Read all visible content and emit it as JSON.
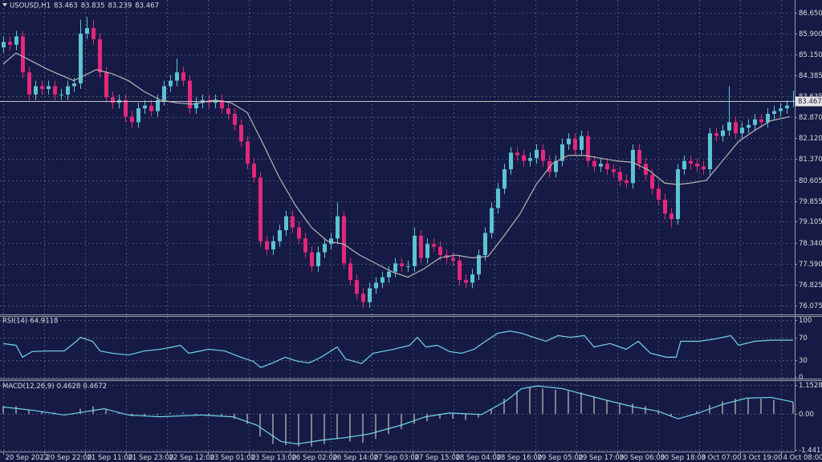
{
  "chart_data": [
    {
      "type": "candlestick",
      "title": "USOUSD,H1",
      "up_color": "#5cc3d2",
      "down_color": "#e2287a",
      "grid": true,
      "xlim": [
        -0.5,
        123.25
      ],
      "ylim": [
        75.756,
        87.114
      ],
      "xticks": [
        {
          "value": 0,
          "label": "20 Sep 2022"
        },
        {
          "value": 6.4,
          "label": "20 Sep 22:00"
        },
        {
          "value": 12.8,
          "label": "21 Sep 11:00"
        },
        {
          "value": 19.1,
          "label": "21 Sep 23:00"
        },
        {
          "value": 25.5,
          "label": "22 Sep 12:00"
        },
        {
          "value": 31.9,
          "label": "23 Sep 01:00"
        },
        {
          "value": 38.3,
          "label": "23 Sep 13:00"
        },
        {
          "value": 44.6,
          "label": "26 Sep 02:00"
        },
        {
          "value": 51,
          "label": "26 Sep 14:00"
        },
        {
          "value": 57.4,
          "label": "27 Sep 03:00"
        },
        {
          "value": 63.8,
          "label": "27 Sep 15:00"
        },
        {
          "value": 70.1,
          "label": "28 Sep 04:00"
        },
        {
          "value": 76.5,
          "label": "28 Sep 16:00"
        },
        {
          "value": 82.9,
          "label": "29 Sep 05:00"
        },
        {
          "value": 89.3,
          "label": "29 Sep 17:00"
        },
        {
          "value": 95.6,
          "label": "30 Sep 06:00"
        },
        {
          "value": 102,
          "label": "30 Sep 18:00"
        },
        {
          "value": 108.4,
          "label": "3 Oct 07:00"
        },
        {
          "value": 114.8,
          "label": "3 Oct 19:00"
        },
        {
          "value": 121.1,
          "label": "4 Oct 08:00"
        }
      ],
      "yticks": [
        {
          "value": 86.65,
          "label": "86.650"
        },
        {
          "value": 85.9,
          "label": "85.900"
        },
        {
          "value": 85.15,
          "label": "85.150"
        },
        84.385,
        83.635,
        {
          "value": 82.87,
          "label": "82.870"
        },
        {
          "value": 82.12,
          "label": "82.120"
        },
        {
          "value": 81.37,
          "label": "81.370"
        },
        80.605,
        79.855,
        79.105,
        {
          "value": 78.34,
          "label": "78.340"
        },
        {
          "value": 77.59,
          "label": "77.590"
        },
        76.825,
        76.075
      ],
      "open": [
        85.4,
        85.6,
        85.5,
        85.8,
        84.5,
        83.7,
        84.0,
        83.9,
        84.0,
        83.7,
        83.7,
        84.0,
        84.1,
        85.9,
        86.1,
        85.7,
        84.5,
        83.6,
        83.4,
        83.5,
        82.9,
        82.7,
        83.2,
        83.3,
        83.1,
        83.5,
        84.0,
        84.2,
        84.5,
        84.2,
        83.2,
        83.4,
        83.5,
        83.4,
        83.5,
        83.2,
        83.0,
        82.6,
        82.0,
        81.2,
        80.7,
        78.4,
        78.1,
        78.4,
        78.8,
        79.3,
        78.9,
        78.5,
        78.0,
        77.5,
        78.0,
        78.3,
        78.5,
        79.3,
        77.6,
        77.0,
        76.5,
        76.2,
        76.7,
        76.9,
        77.1,
        77.3,
        77.6,
        77.5,
        77.5,
        78.6,
        77.8,
        78.3,
        78.2,
        77.9,
        77.8,
        77.7,
        77.0,
        76.9,
        77.2,
        77.9,
        78.7,
        79.6,
        80.3,
        81.0,
        81.6,
        81.5,
        81.3,
        81.4,
        81.7,
        81.3,
        80.9,
        81.3,
        81.9,
        82.1,
        81.7,
        82.2,
        81.3,
        81.1,
        81.2,
        81.0,
        80.9,
        80.6,
        80.5,
        81.7,
        81.2,
        80.8,
        80.3,
        79.9,
        79.4,
        79.2,
        81.0,
        81.3,
        81.2,
        81.1,
        81.0,
        82.3,
        82.2,
        82.4,
        82.7,
        82.3,
        82.5,
        82.6,
        82.8,
        82.7,
        83.0,
        83.1,
        83.2,
        83.463
      ],
      "high": [
        85.8,
        85.8,
        86.0,
        86.0,
        84.7,
        84.2,
        84.2,
        84.2,
        84.2,
        83.9,
        84.2,
        84.3,
        86.4,
        86.5,
        86.4,
        85.9,
        84.7,
        83.8,
        83.7,
        83.7,
        83.1,
        83.4,
        83.5,
        83.5,
        83.7,
        84.2,
        84.4,
        85.0,
        84.7,
        84.4,
        83.6,
        83.7,
        83.7,
        83.7,
        83.7,
        83.4,
        83.2,
        82.8,
        82.2,
        81.4,
        80.9,
        78.6,
        78.6,
        79.0,
        79.5,
        79.5,
        79.1,
        78.7,
        78.2,
        78.2,
        78.5,
        78.7,
        79.8,
        79.5,
        77.8,
        77.2,
        76.7,
        76.9,
        77.1,
        77.3,
        77.5,
        77.8,
        77.8,
        77.7,
        78.9,
        78.8,
        78.5,
        78.5,
        78.4,
        78.1,
        78.0,
        77.9,
        77.2,
        77.4,
        78.1,
        78.9,
        79.8,
        80.5,
        81.2,
        81.8,
        81.8,
        81.7,
        81.6,
        81.9,
        81.9,
        81.5,
        81.5,
        82.1,
        82.3,
        82.3,
        82.4,
        82.4,
        81.5,
        81.4,
        81.4,
        81.2,
        81.1,
        80.8,
        81.9,
        81.9,
        81.4,
        81.0,
        80.5,
        80.1,
        79.6,
        81.2,
        81.5,
        81.5,
        81.4,
        81.3,
        82.5,
        82.5,
        82.6,
        84.0,
        82.9,
        82.7,
        82.8,
        83.0,
        83.0,
        83.2,
        83.3,
        83.4,
        83.5,
        83.835
      ],
      "low": [
        85.2,
        85.3,
        85.3,
        84.3,
        83.5,
        83.5,
        83.7,
        83.7,
        83.5,
        83.5,
        83.5,
        83.8,
        83.9,
        85.7,
        85.5,
        84.3,
        83.4,
        83.2,
        83.2,
        82.7,
        82.5,
        82.5,
        83.0,
        82.9,
        82.9,
        83.3,
        83.8,
        84.0,
        84.0,
        83.0,
        83.0,
        83.2,
        83.2,
        83.2,
        83.0,
        82.8,
        82.4,
        81.8,
        81.0,
        80.5,
        78.2,
        77.9,
        77.9,
        78.2,
        78.6,
        78.7,
        78.3,
        77.8,
        77.3,
        77.3,
        77.8,
        78.1,
        78.3,
        77.4,
        76.8,
        76.3,
        76.0,
        76.0,
        76.5,
        76.7,
        76.9,
        77.1,
        77.3,
        77.3,
        77.3,
        77.6,
        77.6,
        78.0,
        77.7,
        77.6,
        77.5,
        76.8,
        76.7,
        76.7,
        77.0,
        77.7,
        78.5,
        79.4,
        80.1,
        80.8,
        81.3,
        81.1,
        81.1,
        81.2,
        81.1,
        80.7,
        80.7,
        81.1,
        81.7,
        81.5,
        81.5,
        81.1,
        80.9,
        80.9,
        80.8,
        80.7,
        80.4,
        80.3,
        80.3,
        81.0,
        80.6,
        80.1,
        79.7,
        79.2,
        78.9,
        79.0,
        80.8,
        81.0,
        80.9,
        80.8,
        80.8,
        82.0,
        82.0,
        82.2,
        82.1,
        82.1,
        82.3,
        82.4,
        82.5,
        82.5,
        82.8,
        82.9,
        83.0,
        83.239
      ],
      "close": [
        85.6,
        85.5,
        85.8,
        84.5,
        83.7,
        84.0,
        83.9,
        84.0,
        83.7,
        83.7,
        84.0,
        84.1,
        85.9,
        86.1,
        85.7,
        84.5,
        83.6,
        83.4,
        83.5,
        82.9,
        82.7,
        83.2,
        83.3,
        83.1,
        83.5,
        84.0,
        84.2,
        84.5,
        84.2,
        83.2,
        83.4,
        83.5,
        83.4,
        83.5,
        83.2,
        83.0,
        82.6,
        82.0,
        81.2,
        80.7,
        78.4,
        78.1,
        78.4,
        78.8,
        79.3,
        78.9,
        78.5,
        78.0,
        77.5,
        78.0,
        78.3,
        78.5,
        79.3,
        77.6,
        77.0,
        76.5,
        76.2,
        76.7,
        76.9,
        77.1,
        77.3,
        77.6,
        77.5,
        77.5,
        78.6,
        77.8,
        78.3,
        78.2,
        77.9,
        77.8,
        77.7,
        77.0,
        76.9,
        77.2,
        77.9,
        78.7,
        79.6,
        80.3,
        81.0,
        81.6,
        81.5,
        81.3,
        81.4,
        81.7,
        81.3,
        80.9,
        81.3,
        81.9,
        82.1,
        81.7,
        82.2,
        81.3,
        81.1,
        81.2,
        81.0,
        80.9,
        80.6,
        80.5,
        81.7,
        81.2,
        80.8,
        80.3,
        79.9,
        79.4,
        79.2,
        81.0,
        81.3,
        81.2,
        81.1,
        81.0,
        82.3,
        82.2,
        82.4,
        82.7,
        82.3,
        82.5,
        82.6,
        82.8,
        82.7,
        83.0,
        83.1,
        83.2,
        83.3,
        83.467
      ],
      "ma": {
        "color": "#b4b4b4",
        "x": [
          0,
          2,
          4.5,
          7,
          11,
          14.5,
          17,
          19.5,
          22,
          24.5,
          27,
          29.5,
          33,
          35.5,
          38,
          40.5,
          43,
          45.5,
          48,
          50.5,
          53,
          55.5,
          58,
          60.5,
          63,
          65.5,
          68,
          70.5,
          73,
          75.5,
          78,
          80.5,
          83,
          85.5,
          88,
          90.5,
          93,
          95.5,
          98,
          100.5,
          103,
          105,
          107,
          109.5,
          112,
          114.5,
          117,
          119.5,
          122.5
        ],
        "values": [
          84.8,
          85.2,
          84.9,
          84.6,
          84.2,
          84.6,
          84.45,
          84.2,
          83.8,
          83.5,
          83.4,
          83.35,
          83.5,
          83.4,
          83.05,
          81.9,
          80.7,
          79.7,
          78.9,
          78.4,
          78.3,
          77.9,
          77.6,
          77.3,
          77.1,
          77.4,
          77.8,
          77.9,
          77.8,
          77.85,
          78.6,
          79.4,
          80.45,
          81.2,
          81.5,
          81.5,
          81.4,
          81.3,
          81.25,
          80.97,
          80.5,
          80.45,
          80.5,
          80.6,
          81.3,
          82.0,
          82.4,
          82.75,
          82.9
        ]
      }
    },
    {
      "type": "line",
      "title": "RSI(14)",
      "color": "#74d6e4",
      "grid": true,
      "ylim": [
        -2.5,
        106
      ],
      "yticks": [
        100,
        70,
        30,
        0
      ],
      "x": [
        0,
        2,
        3,
        4.5,
        7,
        9.5,
        11.4,
        12,
        13.9,
        15.1,
        17,
        19.5,
        22,
        24.5,
        26.4,
        27.6,
        28.9,
        32,
        34.5,
        37,
        38.9,
        40.1,
        42,
        43.9,
        45.8,
        47.6,
        49.5,
        52,
        53.3,
        55.8,
        57.6,
        60.8,
        63.3,
        64.5,
        65.8,
        67.6,
        69.5,
        71.4,
        73.3,
        75.1,
        77,
        78.9,
        80.8,
        82.6,
        84.5,
        86.4,
        88.3,
        90.5,
        92,
        94.5,
        97,
        98.9,
        100.8,
        103.3,
        104.8,
        105.5,
        108.3,
        110.8,
        113.3,
        114.5,
        117,
        119.5,
        123
      ],
      "values": [
        59,
        56,
        35,
        45,
        46,
        46,
        63,
        70,
        63,
        46,
        42,
        39,
        46,
        49,
        53,
        56,
        42,
        49,
        46,
        35,
        28,
        17,
        25,
        35,
        28,
        25,
        35,
        53,
        32,
        24,
        42,
        49,
        56,
        70,
        53,
        56,
        45,
        42,
        49,
        63,
        77,
        81,
        77,
        70,
        63,
        73,
        70,
        73,
        53,
        59,
        49,
        63,
        42,
        35,
        35,
        63,
        63,
        67,
        73,
        56,
        63,
        65,
        64.9118
      ]
    },
    {
      "type": "macd",
      "title": "MACD(12,26,9)",
      "grid": true,
      "ylim": [
        -1.5,
        1.3
      ],
      "yticks": [
        1.1528,
        {
          "value": 0,
          "label": "0.00"
        },
        -1.4411
      ],
      "histogram": {
        "color": "#b8b8b8",
        "x": [
          0,
          2,
          4,
          6,
          8,
          10,
          12,
          14,
          16,
          18,
          20,
          22,
          24,
          26,
          28,
          30,
          32,
          34,
          36,
          38,
          40,
          42,
          44,
          46,
          48,
          50,
          52,
          54,
          56,
          58,
          60,
          62,
          64,
          66,
          68,
          70,
          72,
          74,
          76,
          78,
          80,
          82,
          84,
          86,
          88,
          90,
          92,
          94,
          96,
          98,
          100,
          102,
          104,
          106,
          108,
          110,
          112,
          114,
          116,
          118,
          120,
          123
        ],
        "values": [
          0.3,
          0.3,
          0.15,
          0.1,
          0.05,
          0.0,
          0.2,
          0.3,
          0.2,
          0.05,
          -0.1,
          -0.1,
          -0.05,
          0.05,
          0.05,
          -0.05,
          -0.05,
          -0.1,
          -0.2,
          -0.4,
          -0.9,
          -1.2,
          -1.25,
          -1.3,
          -1.3,
          -1.2,
          -1.0,
          -1.1,
          -1.15,
          -1.0,
          -0.8,
          -0.6,
          -0.4,
          -0.3,
          -0.2,
          -0.2,
          -0.25,
          -0.15,
          0.2,
          0.6,
          0.9,
          1.05,
          1.0,
          0.95,
          0.9,
          0.85,
          0.7,
          0.55,
          0.4,
          0.4,
          0.3,
          0.1,
          -0.1,
          0.0,
          0.1,
          0.35,
          0.5,
          0.6,
          0.6,
          0.6,
          0.55,
          0.4628
        ]
      },
      "signal": {
        "color": "#6fd8e6",
        "x": [
          0,
          4.5,
          9.5,
          15.75,
          19.5,
          24.5,
          30.75,
          35.75,
          39.5,
          43.25,
          45.75,
          49.5,
          53.25,
          57,
          62,
          65.75,
          69.5,
          74.5,
          78.25,
          80.75,
          83.25,
          87,
          90.75,
          94.5,
          98.25,
          102,
          105.1,
          108.25,
          112,
          115.75,
          119.5,
          123
        ],
        "values": [
          0.27,
          0.14,
          -0.05,
          0.2,
          -0.05,
          -0.12,
          -0.05,
          -0.12,
          -0.45,
          -1.1,
          -1.2,
          -1.05,
          -0.95,
          -0.8,
          -0.45,
          -0.12,
          0.03,
          -0.03,
          0.5,
          1.0,
          1.1,
          1.0,
          0.75,
          0.5,
          0.27,
          0.1,
          -0.2,
          0.03,
          0.37,
          0.62,
          0.65,
          0.4672
        ]
      }
    }
  ]
}
